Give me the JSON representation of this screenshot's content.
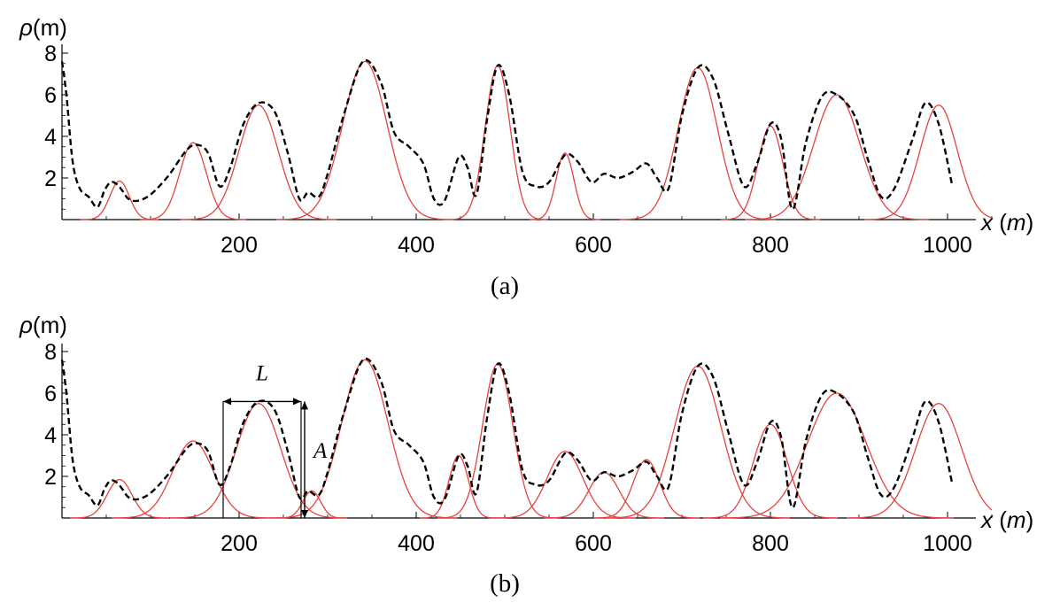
{
  "chart_data": [
    {
      "type": "line",
      "panel_label": "(a)",
      "ylabel_symbol": "ρ",
      "ylabel_unit": "(m)",
      "xlabel_var": "x",
      "xlabel_unit": "m",
      "xlim": [
        0,
        1050
      ],
      "ylim": [
        0,
        8
      ],
      "x_ticks": [
        200,
        400,
        600,
        800,
        1000
      ],
      "y_ticks": [
        2,
        4,
        6,
        8
      ],
      "colors": {
        "measured": "#000000",
        "gaussian": "#e8413f"
      },
      "series": [
        {
          "style": "dashed",
          "x": [
            0,
            5,
            12,
            20,
            30,
            40,
            48,
            55,
            62,
            68,
            75,
            85,
            100,
            120,
            140,
            152,
            165,
            178,
            190,
            205,
            222,
            240,
            255,
            268,
            278,
            290,
            300,
            318,
            340,
            360,
            375,
            392,
            408,
            420,
            432,
            448,
            458,
            468,
            480,
            492,
            505,
            520,
            535,
            550,
            568,
            582,
            598,
            612,
            628,
            645,
            660,
            672,
            685,
            700,
            718,
            735,
            752,
            770,
            785,
            800,
            812,
            825,
            840,
            858,
            875,
            895,
            910,
            925,
            940,
            960,
            975,
            990,
            1005
          ],
          "y": [
            7.6,
            6.0,
            2.8,
            1.5,
            1.1,
            0.6,
            1.4,
            1.8,
            1.7,
            1.4,
            1.0,
            0.9,
            1.2,
            2.1,
            3.3,
            3.6,
            3.2,
            1.6,
            2.5,
            4.6,
            5.6,
            5.2,
            3.2,
            1.0,
            1.3,
            1.1,
            2.2,
            5.0,
            7.6,
            6.6,
            4.2,
            3.5,
            2.7,
            1.0,
            0.9,
            3.0,
            2.5,
            1.2,
            4.8,
            7.4,
            6.0,
            2.3,
            1.6,
            1.8,
            3.1,
            2.8,
            1.8,
            2.2,
            2.0,
            2.3,
            2.7,
            2.0,
            1.5,
            5.0,
            7.3,
            6.8,
            4.2,
            1.6,
            2.7,
            4.6,
            3.9,
            0.5,
            3.7,
            5.9,
            6.0,
            5.0,
            2.9,
            1.1,
            1.5,
            3.8,
            5.6,
            4.6,
            1.7
          ]
        },
        {
          "style": "solid",
          "gaussians": [
            {
              "center": 65,
              "amplitude": 1.85,
              "sigma": 11
            },
            {
              "center": 148,
              "amplitude": 3.7,
              "sigma": 15
            },
            {
              "center": 222,
              "amplitude": 5.5,
              "sigma": 22
            },
            {
              "center": 342,
              "amplitude": 7.6,
              "sigma": 25
            },
            {
              "center": 492,
              "amplitude": 7.4,
              "sigma": 14
            },
            {
              "center": 568,
              "amplitude": 3.2,
              "sigma": 10
            },
            {
              "center": 718,
              "amplitude": 7.3,
              "sigma": 22
            },
            {
              "center": 800,
              "amplitude": 4.5,
              "sigma": 14
            },
            {
              "center": 875,
              "amplitude": 6.0,
              "sigma": 26
            },
            {
              "center": 990,
              "amplitude": 5.5,
              "sigma": 21
            }
          ]
        }
      ]
    },
    {
      "type": "line",
      "panel_label": "(b)",
      "ylabel_symbol": "ρ",
      "ylabel_unit": "(m)",
      "xlabel_var": "x",
      "xlabel_unit": "m",
      "xlim": [
        0,
        1050
      ],
      "ylim": [
        0,
        8
      ],
      "x_ticks": [
        200,
        400,
        600,
        800,
        1000
      ],
      "y_ticks": [
        2,
        4,
        6,
        8
      ],
      "colors": {
        "measured": "#000000",
        "gaussian": "#e8413f",
        "annotation": "#000000"
      },
      "annotations": {
        "width_label": "L",
        "height_label": "A",
        "box": {
          "x_left": 182,
          "x_right": 270,
          "y_top": 5.6
        }
      },
      "series": [
        {
          "style": "dashed",
          "x": [
            0,
            5,
            12,
            20,
            30,
            40,
            48,
            55,
            62,
            68,
            75,
            85,
            100,
            120,
            140,
            152,
            165,
            178,
            190,
            205,
            222,
            240,
            255,
            268,
            278,
            290,
            300,
            318,
            340,
            360,
            375,
            392,
            408,
            420,
            432,
            448,
            458,
            468,
            480,
            492,
            505,
            520,
            535,
            550,
            568,
            582,
            598,
            612,
            628,
            645,
            660,
            672,
            685,
            700,
            718,
            735,
            752,
            770,
            785,
            800,
            812,
            825,
            840,
            858,
            875,
            895,
            910,
            925,
            940,
            960,
            975,
            990,
            1005
          ],
          "y": [
            7.6,
            6.0,
            2.8,
            1.5,
            1.1,
            0.6,
            1.4,
            1.8,
            1.7,
            1.4,
            1.0,
            0.9,
            1.2,
            2.1,
            3.3,
            3.6,
            3.2,
            1.6,
            2.5,
            4.6,
            5.6,
            5.2,
            3.2,
            1.0,
            1.3,
            1.1,
            2.2,
            5.0,
            7.6,
            6.6,
            4.2,
            3.5,
            2.7,
            1.0,
            0.9,
            3.0,
            2.5,
            1.2,
            4.8,
            7.4,
            6.0,
            2.3,
            1.6,
            1.8,
            3.1,
            2.8,
            1.8,
            2.2,
            2.0,
            2.3,
            2.7,
            2.0,
            1.5,
            5.0,
            7.3,
            6.8,
            4.2,
            1.6,
            2.7,
            4.6,
            3.9,
            0.5,
            3.7,
            5.9,
            6.0,
            5.0,
            2.9,
            1.1,
            1.5,
            3.8,
            5.6,
            4.6,
            1.7
          ]
        },
        {
          "style": "solid",
          "gaussians": [
            {
              "center": 65,
              "amplitude": 1.85,
              "sigma": 14
            },
            {
              "center": 148,
              "amplitude": 3.7,
              "sigma": 23
            },
            {
              "center": 222,
              "amplitude": 5.5,
              "sigma": 25
            },
            {
              "center": 282,
              "amplitude": 1.3,
              "sigma": 10
            },
            {
              "center": 342,
              "amplitude": 7.6,
              "sigma": 26
            },
            {
              "center": 448,
              "amplitude": 3.0,
              "sigma": 11
            },
            {
              "center": 492,
              "amplitude": 7.4,
              "sigma": 17
            },
            {
              "center": 568,
              "amplitude": 3.2,
              "sigma": 20
            },
            {
              "center": 612,
              "amplitude": 2.2,
              "sigma": 17
            },
            {
              "center": 660,
              "amplitude": 2.8,
              "sigma": 15
            },
            {
              "center": 718,
              "amplitude": 7.3,
              "sigma": 26
            },
            {
              "center": 800,
              "amplitude": 4.5,
              "sigma": 19
            },
            {
              "center": 875,
              "amplitude": 6.0,
              "sigma": 33
            },
            {
              "center": 990,
              "amplitude": 5.5,
              "sigma": 26
            }
          ]
        }
      ]
    }
  ]
}
